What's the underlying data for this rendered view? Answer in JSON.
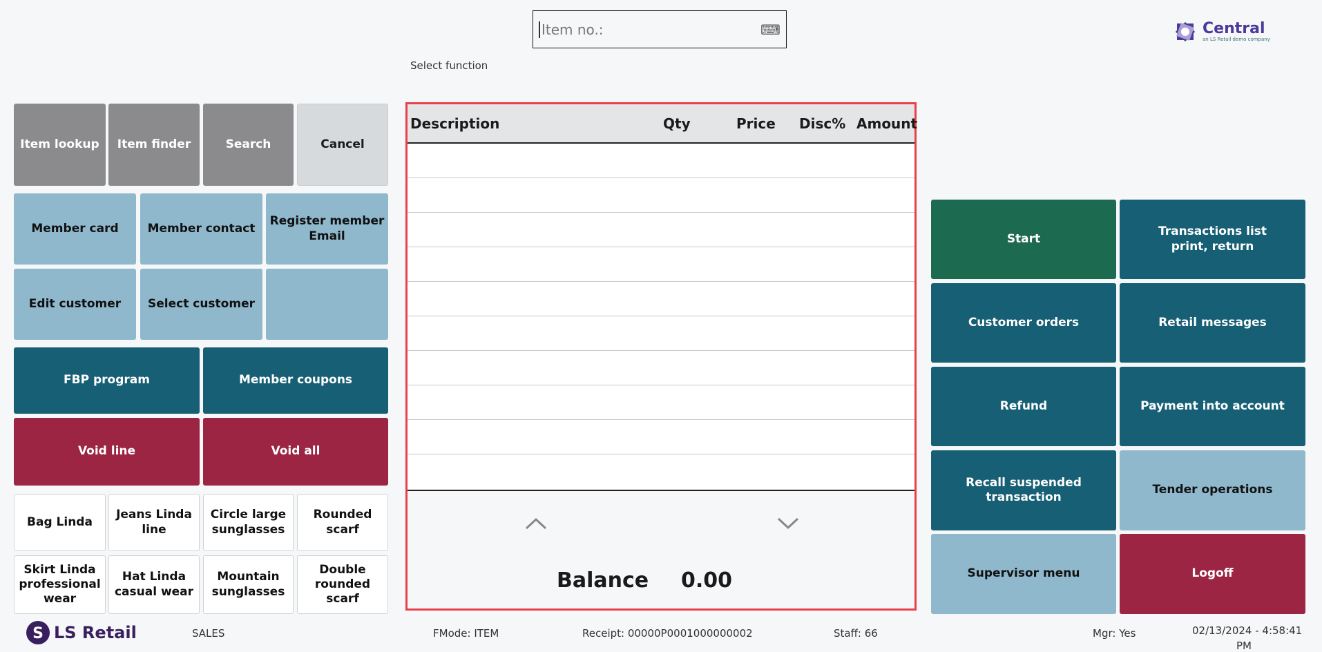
{
  "search": {
    "placeholder": "Item no.:",
    "keyboard_icon": "keyboard-icon"
  },
  "prompt": "Select function",
  "logo": {
    "name": "Central",
    "tagline": "an LS Retail demo company"
  },
  "left_buttons": {
    "row1": [
      "Item lookup",
      "Item finder",
      "Search",
      "Cancel"
    ],
    "member": [
      "Member card",
      "Member contact",
      "Register member\nEmail",
      "Edit customer",
      "Select customer",
      ""
    ],
    "loyalty": [
      "FBP program",
      "Member coupons"
    ],
    "void": [
      "Void line",
      "Void all"
    ],
    "items": [
      "Bag Linda",
      "Jeans Linda\nline",
      "Circle large\nsunglasses",
      "Rounded\nscarf",
      "Skirt Linda\nprofessional\nwear",
      "Hat Linda\ncasual wear",
      "Mountain\nsunglasses",
      "Double\nrounded\nscarf"
    ]
  },
  "journal": {
    "columns": [
      "Description",
      "Qty",
      "Price",
      "Disc%",
      "Amount"
    ],
    "rows": [],
    "balance_label": "Balance",
    "balance_value": "0.00"
  },
  "right_buttons": [
    "Start",
    "Transactions list\nprint, return",
    "Customer orders",
    "Retail messages",
    "Refund",
    "Payment into account",
    "Recall suspended\ntransaction",
    "Tender operations",
    "Supervisor menu",
    "Logoff"
  ],
  "status": {
    "brand": "LS Retail",
    "mode": "SALES",
    "fmode": "FMode: ITEM",
    "receipt": "Receipt: 00000P0001000000002",
    "staff": "Staff: 66",
    "mgr": "Mgr: Yes",
    "datetime": "02/13/2024 - 4:58:41",
    "ampm": "PM"
  },
  "colors": {
    "gray": "#8b8b8d",
    "light_blue": "#8fb8cc",
    "teal": "#175f75",
    "green": "#1c6a50",
    "red": "#9b2543",
    "panel_border": "#e8414a",
    "brand_purple": "#4b3a9a"
  }
}
